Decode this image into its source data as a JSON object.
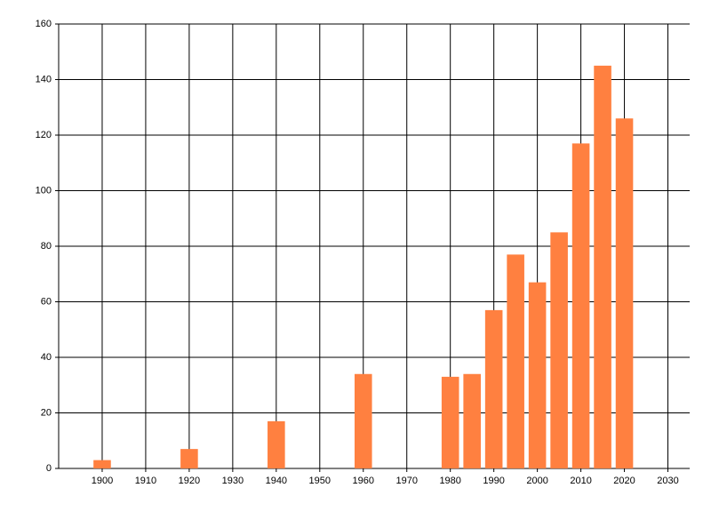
{
  "chart_data": {
    "type": "bar",
    "x": [
      1900,
      1920,
      1940,
      1960,
      1980,
      1985,
      1990,
      1995,
      2000,
      2005,
      2010,
      2015,
      2020
    ],
    "values": [
      3,
      7,
      17,
      34,
      33,
      34,
      57,
      77,
      67,
      85,
      117,
      145,
      126
    ],
    "color": "#ff8040",
    "xlim": [
      1890,
      2035
    ],
    "xticks": [
      1900,
      1910,
      1920,
      1930,
      1940,
      1950,
      1960,
      1970,
      1980,
      1990,
      2000,
      2010,
      2020,
      2030
    ],
    "ylim": [
      0,
      160
    ],
    "yticks": [
      0,
      20,
      40,
      60,
      80,
      100,
      120,
      140,
      160
    ],
    "grid": true
  }
}
